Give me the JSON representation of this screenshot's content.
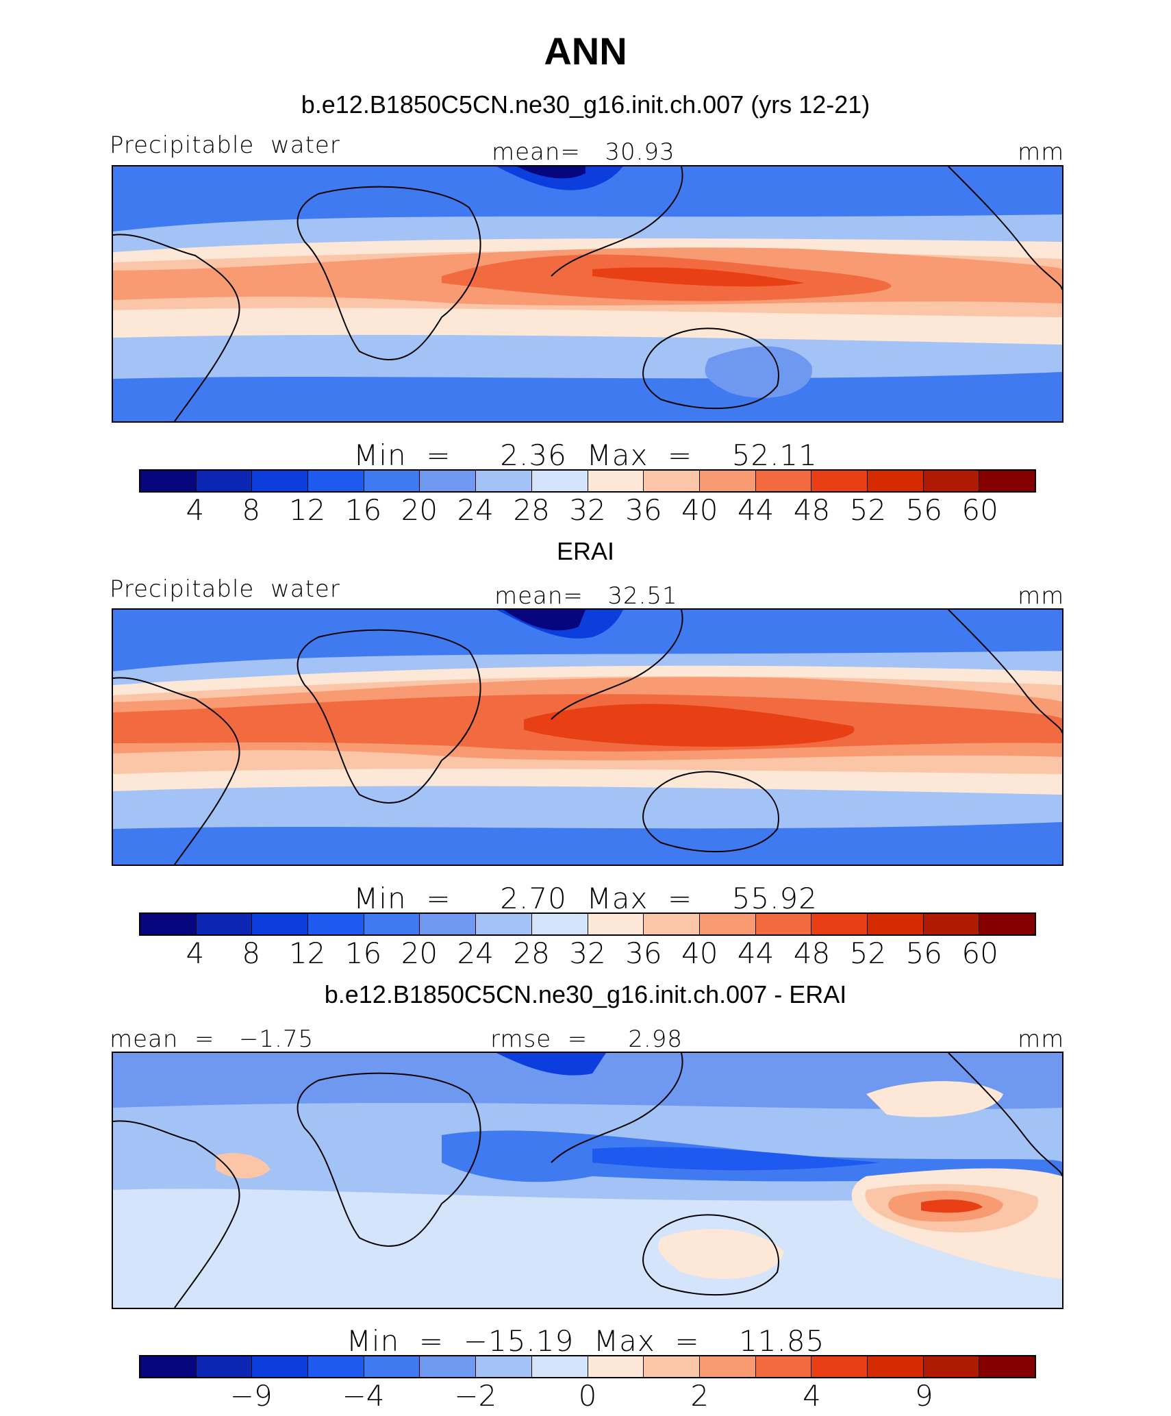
{
  "title": "ANN",
  "colors": [
    "#08067f",
    "#0a26b2",
    "#0c3ede",
    "#1f5af0",
    "#3f7af0",
    "#6f98f0",
    "#a3c2f5",
    "#d3e4fb",
    "#fde7d6",
    "#fbc6a8",
    "#f89a72",
    "#f26a3f",
    "#e83f14",
    "#d62a00",
    "#b01a00",
    "#850000"
  ],
  "panels": [
    {
      "title": "b.e12.B1850C5CN.ne30_g16.init.ch.007 (yrs 12-21)",
      "left": "Precipitable  water",
      "center": "mean=   30.93",
      "right": "mm",
      "minmax": "Min  =     2.36  Max  =    52.11",
      "ticks": [
        "4",
        "8",
        "12",
        "16",
        "20",
        "24",
        "28",
        "32",
        "36",
        "40",
        "44",
        "48",
        "52",
        "56",
        "60"
      ]
    },
    {
      "title": "ERAI",
      "left": "Precipitable  water",
      "center": "mean=   32.51",
      "right": "mm",
      "minmax": "Min  =     2.70  Max  =    55.92",
      "ticks": [
        "4",
        "8",
        "12",
        "16",
        "20",
        "24",
        "28",
        "32",
        "36",
        "40",
        "44",
        "48",
        "52",
        "56",
        "60"
      ]
    },
    {
      "title": "b.e12.B1850C5CN.ne30_g16.init.ch.007 - ERAI",
      "left": "mean  =   −1.75",
      "center": "rmse  =     2.98",
      "right": "mm",
      "minmax": "Min  =  −15.19  Max  =    11.85",
      "ticks": [
        "−9",
        "−4",
        "−2",
        "0",
        "2",
        "4",
        "9"
      ]
    }
  ]
}
